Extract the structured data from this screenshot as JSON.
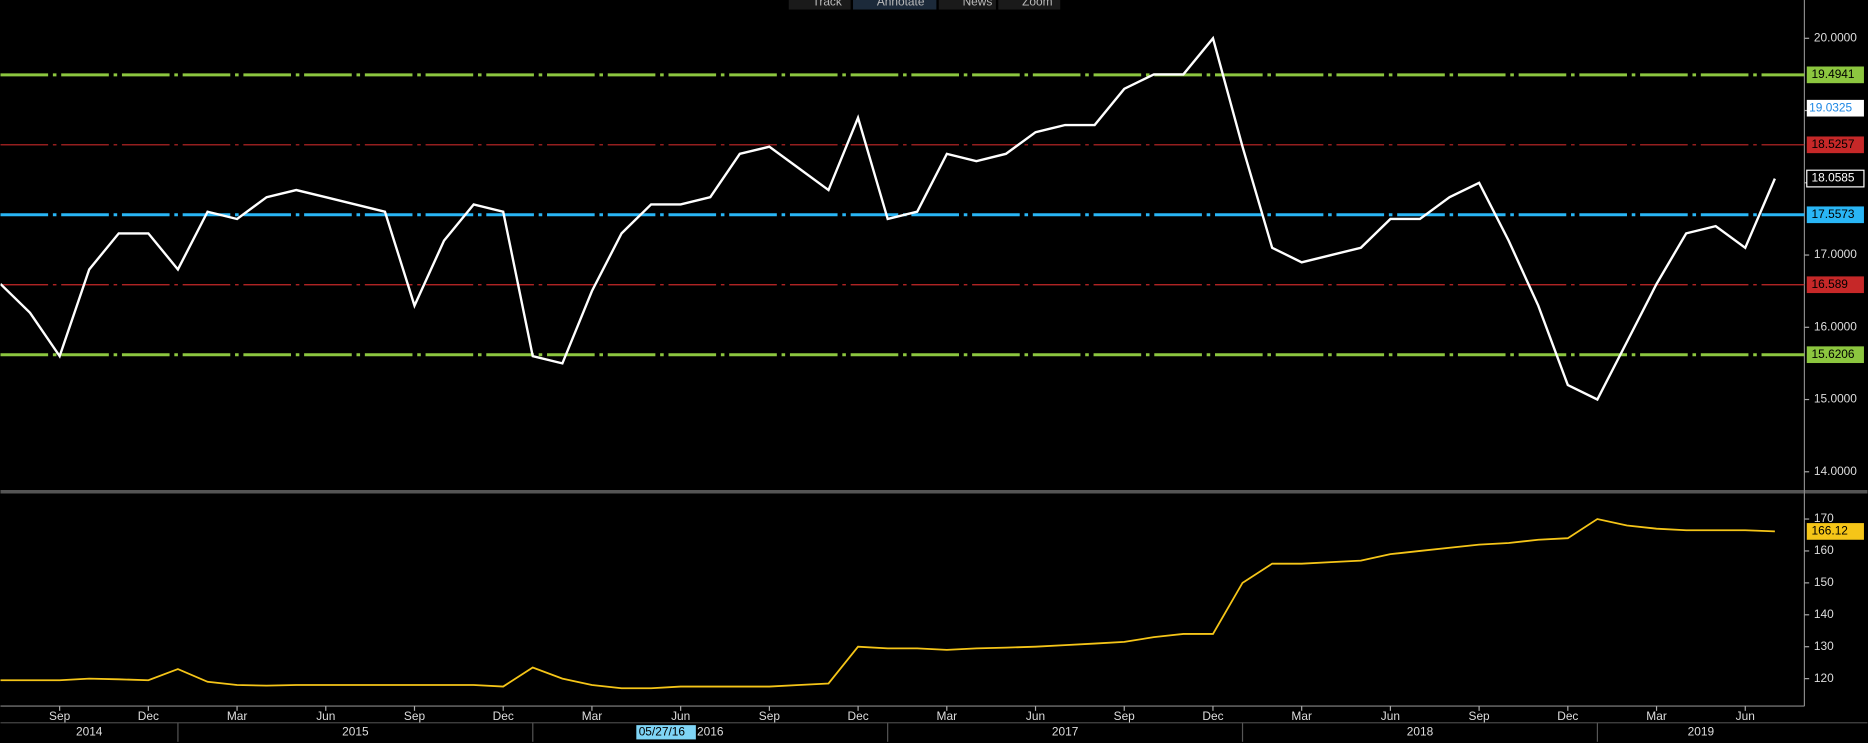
{
  "toolbar": [
    "Track",
    "Annotate",
    "News",
    "Zoom"
  ],
  "cursor_label": "05/27/16",
  "chart_data": [
    {
      "type": "line",
      "x": [
        "2014-07",
        "2014-08",
        "2014-09",
        "2014-10",
        "2014-11",
        "2014-12",
        "2015-01",
        "2015-02",
        "2015-03",
        "2015-04",
        "2015-05",
        "2015-06",
        "2015-07",
        "2015-08",
        "2015-09",
        "2015-10",
        "2015-11",
        "2015-12",
        "2016-01",
        "2016-02",
        "2016-03",
        "2016-04",
        "2016-05",
        "2016-06",
        "2016-07",
        "2016-08",
        "2016-09",
        "2016-10",
        "2016-11",
        "2016-12",
        "2017-01",
        "2017-02",
        "2017-03",
        "2017-04",
        "2017-05",
        "2017-06",
        "2017-07",
        "2017-08",
        "2017-09",
        "2017-10",
        "2017-11",
        "2017-12",
        "2018-01",
        "2018-02",
        "2018-03",
        "2018-04",
        "2018-05",
        "2018-06",
        "2018-07",
        "2018-08",
        "2018-09",
        "2018-10",
        "2018-11",
        "2018-12",
        "2019-01",
        "2019-02",
        "2019-03",
        "2019-04",
        "2019-05",
        "2019-06",
        "2019-07"
      ],
      "xlim": [
        "2014-07",
        "2019-08"
      ],
      "values": [
        16.6,
        16.2,
        15.6,
        16.8,
        17.3,
        17.3,
        16.8,
        17.6,
        17.5,
        17.8,
        17.9,
        17.8,
        17.7,
        17.6,
        16.3,
        17.2,
        17.7,
        17.6,
        15.6,
        15.5,
        16.5,
        17.3,
        17.7,
        17.7,
        17.8,
        18.4,
        18.5,
        18.2,
        17.9,
        18.9,
        17.5,
        17.6,
        18.4,
        18.3,
        18.4,
        18.7,
        18.8,
        18.8,
        19.3,
        19.5,
        19.5,
        20.0,
        18.5,
        17.1,
        16.9,
        17.0,
        17.1,
        17.5,
        17.5,
        17.8,
        18.0,
        17.2,
        16.3,
        15.2,
        15.0,
        15.8,
        16.6,
        17.3,
        17.4,
        17.1,
        18.0585
      ],
      "color": "#ffffff",
      "ylim": [
        13.74,
        20.53
      ],
      "yticks": [
        {
          "value": 14,
          "label": "14.0000"
        },
        {
          "value": 15,
          "label": "15.0000"
        },
        {
          "value": 16,
          "label": "16.0000"
        },
        {
          "value": 17,
          "label": "17.0000"
        },
        {
          "value": 18,
          "label": "18.0000"
        },
        {
          "value": 19,
          "label": "19.0000"
        },
        {
          "value": 20,
          "label": "20.0000"
        }
      ],
      "reference_lines": [
        {
          "value": 19.4941,
          "color": "#8cc63f",
          "style": "dashdot"
        },
        {
          "value": 18.5257,
          "color": "#c62828",
          "style": "dashdot"
        },
        {
          "value": 17.5573,
          "color": "#29b6f6",
          "style": "dashdot"
        },
        {
          "value": 16.589,
          "color": "#c62828",
          "style": "dashdot"
        },
        {
          "value": 15.6206,
          "color": "#8cc63f",
          "style": "dashdot"
        }
      ],
      "crosshair_value": 19.0325,
      "last_value": 18.0585
    },
    {
      "type": "line",
      "x": [
        "2014-07",
        "2014-08",
        "2014-09",
        "2014-10",
        "2014-11",
        "2014-12",
        "2015-01",
        "2015-02",
        "2015-03",
        "2015-04",
        "2015-05",
        "2015-06",
        "2015-07",
        "2015-08",
        "2015-09",
        "2015-10",
        "2015-11",
        "2015-12",
        "2016-01",
        "2016-02",
        "2016-03",
        "2016-04",
        "2016-05",
        "2016-06",
        "2016-07",
        "2016-08",
        "2016-09",
        "2016-10",
        "2016-11",
        "2016-12",
        "2017-01",
        "2017-02",
        "2017-03",
        "2017-04",
        "2017-05",
        "2017-06",
        "2017-07",
        "2017-08",
        "2017-09",
        "2017-10",
        "2017-11",
        "2017-12",
        "2018-01",
        "2018-02",
        "2018-03",
        "2018-04",
        "2018-05",
        "2018-06",
        "2018-07",
        "2018-08",
        "2018-09",
        "2018-10",
        "2018-11",
        "2018-12",
        "2019-01",
        "2019-02",
        "2019-03",
        "2019-04",
        "2019-05",
        "2019-06",
        "2019-07"
      ],
      "xlim": [
        "2014-07",
        "2019-08"
      ],
      "values": [
        119.5,
        119.5,
        119.5,
        120,
        119.8,
        119.5,
        123,
        119,
        118,
        117.8,
        118,
        118,
        118,
        118,
        118,
        118,
        118,
        117.5,
        123.5,
        120,
        118,
        117,
        117,
        117.5,
        117.5,
        117.5,
        117.5,
        118,
        118.5,
        130,
        129.5,
        129.5,
        129,
        129.5,
        129.7,
        130,
        130.5,
        131,
        131.5,
        133,
        134,
        134,
        150,
        156,
        156,
        156.5,
        157,
        159,
        160,
        161,
        162,
        162.5,
        163.5,
        164,
        170,
        168,
        167,
        166.5,
        166.5,
        166.5,
        166.12
      ],
      "color": "#f5c518",
      "ylim": [
        111.4,
        177.8
      ],
      "yticks": [
        120,
        130,
        140,
        150,
        160,
        170
      ],
      "last_value": 166.12,
      "xticks": [
        {
          "value": "2014-09",
          "label": "Sep"
        },
        {
          "value": "2014-12",
          "label": "Dec"
        },
        {
          "value": "2015-03",
          "label": "Mar"
        },
        {
          "value": "2015-06",
          "label": "Jun"
        },
        {
          "value": "2015-09",
          "label": "Sep"
        },
        {
          "value": "2015-12",
          "label": "Dec"
        },
        {
          "value": "2016-03",
          "label": "Mar"
        },
        {
          "value": "2016-06",
          "label": "Jun"
        },
        {
          "value": "2016-09",
          "label": "Sep"
        },
        {
          "value": "2016-12",
          "label": "Dec"
        },
        {
          "value": "2017-03",
          "label": "Mar"
        },
        {
          "value": "2017-06",
          "label": "Jun"
        },
        {
          "value": "2017-09",
          "label": "Sep"
        },
        {
          "value": "2017-12",
          "label": "Dec"
        },
        {
          "value": "2018-03",
          "label": "Mar"
        },
        {
          "value": "2018-06",
          "label": "Jun"
        },
        {
          "value": "2018-09",
          "label": "Sep"
        },
        {
          "value": "2018-12",
          "label": "Dec"
        },
        {
          "value": "2019-03",
          "label": "Mar"
        },
        {
          "value": "2019-06",
          "label": "Jun"
        }
      ],
      "years": [
        "2014",
        "2015",
        "2016",
        "2017",
        "2018",
        "2019"
      ]
    }
  ]
}
